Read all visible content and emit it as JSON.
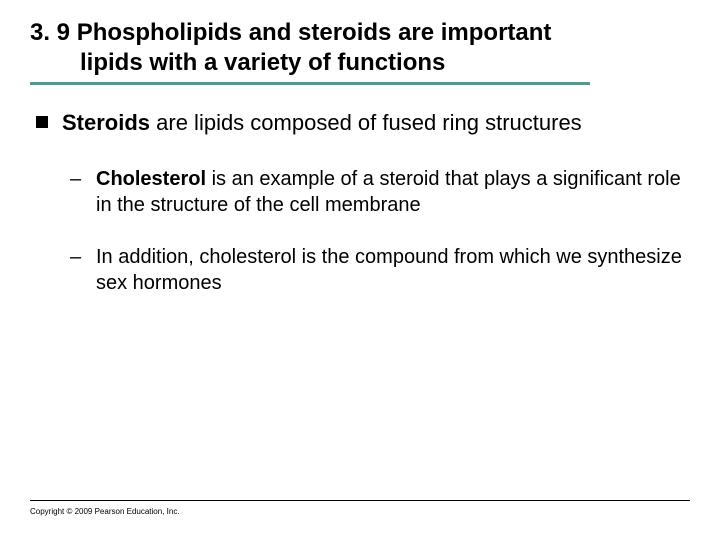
{
  "title": {
    "line1": "3. 9 Phospholipids and steroids are important",
    "line2": "lipids with a variety of functions",
    "fontsize": 24,
    "color": "#000000",
    "rule_color": "#589790",
    "rule_width": 560
  },
  "body": {
    "lvl1": {
      "bold": "Steroids",
      "rest": " are lipids composed of fused ring structures",
      "fontsize": 22
    },
    "lvl2": [
      {
        "bold": "Cholesterol",
        "rest": " is an example of a steroid that plays a significant role in the structure of the cell membrane"
      },
      {
        "bold": "",
        "rest": "In addition, cholesterol is the compound from which we synthesize sex hormones"
      }
    ],
    "lvl2_fontsize": 20,
    "dash": "–"
  },
  "footer": {
    "text": "Copyright © 2009 Pearson Education, Inc.",
    "fontsize": 8,
    "rule_color": "#000000"
  },
  "colors": {
    "background": "#ffffff",
    "text": "#000000",
    "bullet": "#000000"
  }
}
